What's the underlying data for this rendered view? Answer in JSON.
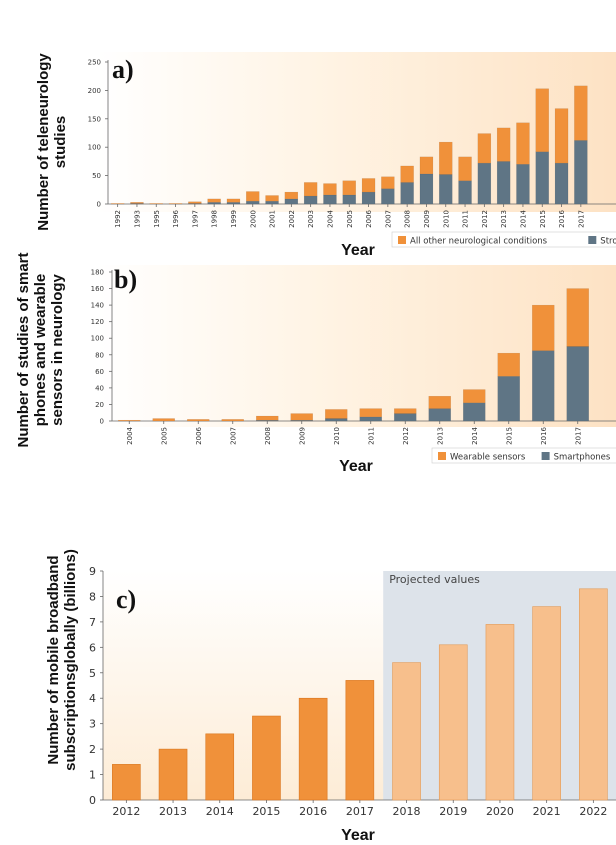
{
  "chart_data": [
    {
      "type": "bar",
      "panel_label": "a)",
      "ylabel": "Number of teleneurology studies",
      "xlabel": "Year",
      "ylim": [
        0,
        250
      ],
      "yticks": [
        0,
        50,
        100,
        150,
        200,
        250
      ],
      "categories": [
        "1992",
        "1993",
        "1995",
        "1996",
        "1997",
        "1998",
        "1999",
        "2000",
        "2001",
        "2002",
        "2003",
        "2004",
        "2005",
        "2006",
        "2007",
        "2008",
        "2009",
        "2010",
        "2011",
        "2012",
        "2013",
        "2014",
        "2015",
        "2016",
        "2017"
      ],
      "series": [
        {
          "name": "Stroke",
          "color": "#5f7585",
          "values": [
            0,
            1,
            0,
            0,
            1,
            3,
            3,
            5,
            5,
            9,
            14,
            16,
            16,
            21,
            27,
            38,
            53,
            52,
            41,
            72,
            75,
            70,
            92,
            72,
            112
          ]
        },
        {
          "name": "All other neurological conditions",
          "color": "#f0913a",
          "values": [
            1,
            2,
            1,
            1,
            3,
            6,
            6,
            17,
            10,
            12,
            24,
            20,
            25,
            24,
            21,
            29,
            30,
            57,
            42,
            52,
            59,
            73,
            111,
            96,
            96
          ]
        }
      ],
      "stacked": true,
      "legend_position": "bottom-right"
    },
    {
      "type": "bar",
      "panel_label": "b)",
      "ylabel": "Number of studies of smart phones and wearable sensors in neurology",
      "xlabel": "Year",
      "ylim": [
        0,
        180
      ],
      "yticks": [
        0,
        20,
        40,
        60,
        80,
        100,
        120,
        140,
        160,
        180
      ],
      "categories": [
        "2004",
        "2005",
        "2006",
        "2007",
        "2008",
        "2009",
        "2010",
        "2011",
        "2012",
        "2013",
        "2014",
        "2015",
        "2016",
        "2017"
      ],
      "series": [
        {
          "name": "Smartphones",
          "color": "#5f7585",
          "values": [
            0,
            0,
            0,
            0,
            1,
            1,
            3,
            5,
            9,
            15,
            22,
            54,
            85,
            90
          ]
        },
        {
          "name": "Wearable sensors",
          "color": "#f0913a",
          "values": [
            1,
            3,
            2,
            2,
            5,
            8,
            11,
            10,
            6,
            15,
            16,
            28,
            55,
            70
          ]
        }
      ],
      "stacked": true,
      "legend_position": "bottom-right"
    },
    {
      "type": "bar",
      "panel_label": "c)",
      "ylabel": "Number of mobile broadband subscriptions globally (billions)",
      "xlabel": "Year",
      "ylim": [
        0,
        9
      ],
      "yticks": [
        0,
        1,
        2,
        3,
        4,
        5,
        6,
        7,
        8,
        9
      ],
      "categories": [
        "2012",
        "2013",
        "2014",
        "2015",
        "2016",
        "2017",
        "2018",
        "2019",
        "2020",
        "2021",
        "2022"
      ],
      "values": [
        1.4,
        2.0,
        2.6,
        3.3,
        4.0,
        4.7,
        5.4,
        6.1,
        6.9,
        7.6,
        8.3
      ],
      "projected_from_index": 6,
      "annotation": "Projected values",
      "colors": {
        "actual": "#f0913a",
        "projected": "#f7bf8c",
        "projected_band": "#dde3ea"
      }
    }
  ]
}
